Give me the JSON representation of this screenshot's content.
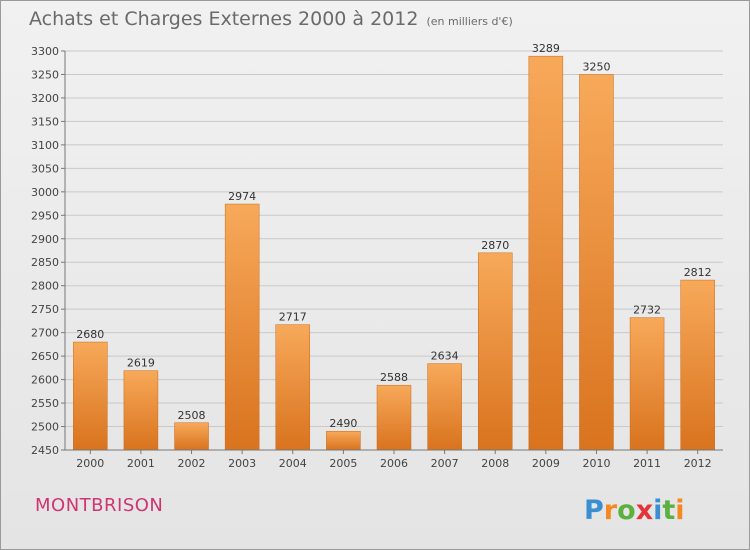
{
  "header": {
    "title": "Achats et Charges Externes 2000 à 2012",
    "unit": "(en milliers d'€)"
  },
  "footer": {
    "city": "MONTBRISON",
    "logo_text": "Proxiti"
  },
  "colors": {
    "bar_light": "#f7a95a",
    "bar_dark": "#d9731e",
    "grid": "#c9c9c9",
    "city": "#d0356e",
    "title": "#6a6a6a"
  },
  "chart_data": {
    "type": "bar",
    "title": "Achats et Charges Externes 2000 à 2012",
    "xlabel": "",
    "ylabel": "",
    "categories": [
      "2000",
      "2001",
      "2002",
      "2003",
      "2004",
      "2005",
      "2006",
      "2007",
      "2008",
      "2009",
      "2010",
      "2011",
      "2012"
    ],
    "values": [
      2680,
      2619,
      2508,
      2974,
      2717,
      2490,
      2588,
      2634,
      2870,
      3289,
      3250,
      2732,
      2812
    ],
    "ylim": [
      2450,
      3300
    ],
    "yticks": [
      2450,
      2500,
      2550,
      2600,
      2650,
      2700,
      2750,
      2800,
      2850,
      2900,
      2950,
      3000,
      3050,
      3100,
      3150,
      3200,
      3250,
      3300
    ],
    "grid": true,
    "data_labels": true
  }
}
